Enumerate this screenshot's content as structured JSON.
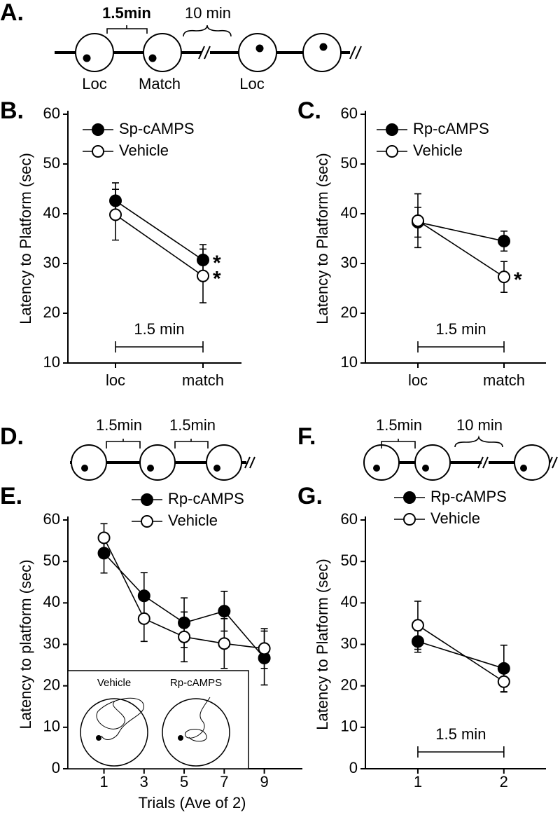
{
  "diagrams": [
    {
      "panel": "A.",
      "labels": [
        "1.5min",
        "10 min",
        "Loc",
        "Match",
        "Loc"
      ]
    },
    {
      "panel": "D.",
      "labels": [
        "1.5min",
        "1.5min"
      ]
    },
    {
      "panel": "F.",
      "labels": [
        "1.5min",
        "10 min"
      ]
    }
  ],
  "chart_data": [
    {
      "type": "line",
      "panel": "B.",
      "y_label": "Latency to Platform (sec)",
      "categories": [
        "loc",
        "match"
      ],
      "ylim": [
        10,
        60
      ],
      "yticks": [
        10,
        20,
        30,
        40,
        50,
        60
      ],
      "annotation": "1.5 min",
      "series": [
        {
          "name": "Sp-cAMPS",
          "color": "#000000",
          "fill": "#000000",
          "values": [
            42.6,
            30.7
          ],
          "errors": [
            3.6,
            3.1
          ],
          "significance": [
            null,
            "*"
          ]
        },
        {
          "name": "Vehicle",
          "color": "#000000",
          "fill": "#ffffff",
          "values": [
            39.8,
            27.5
          ],
          "errors": [
            5.1,
            5.4
          ],
          "significance": [
            null,
            "*"
          ]
        }
      ]
    },
    {
      "type": "line",
      "panel": "C.",
      "y_label": "Latency to Platform (sec)",
      "categories": [
        "loc",
        "match"
      ],
      "ylim": [
        10,
        60
      ],
      "yticks": [
        10,
        20,
        30,
        40,
        50,
        60
      ],
      "annotation": "1.5 min",
      "series": [
        {
          "name": "Rp-cAMPS",
          "color": "#000000",
          "fill": "#000000",
          "values": [
            38.3,
            34.5
          ],
          "errors": [
            3.0,
            2.0
          ]
        },
        {
          "name": "Vehicle",
          "color": "#000000",
          "fill": "#ffffff",
          "values": [
            38.6,
            27.3
          ],
          "errors": [
            5.4,
            3.1
          ],
          "significance": [
            null,
            "*"
          ]
        }
      ]
    },
    {
      "type": "line",
      "panel": "E.",
      "y_label": "Latency to platform (sec)",
      "x_label": "Trials (Ave of 2)",
      "x": [
        1,
        3,
        5,
        7,
        9
      ],
      "xlim": [
        -0.8,
        10.9
      ],
      "xticks": [
        1,
        3,
        5,
        7,
        9
      ],
      "ylim": [
        0,
        60
      ],
      "yticks": [
        0,
        10,
        20,
        30,
        40,
        50,
        60
      ],
      "inset_labels": [
        "Vehicle",
        "Rp-cAMPS"
      ],
      "series": [
        {
          "name": "Rp-cAMPS",
          "color": "#000000",
          "fill": "#000000",
          "values": [
            52,
            41.7,
            35.2,
            38,
            26.7
          ],
          "errors": [
            4.8,
            5.6,
            6,
            4.8,
            6.5
          ]
        },
        {
          "name": "Vehicle",
          "color": "#000000",
          "fill": "#ffffff",
          "values": [
            55.7,
            36.2,
            31.8,
            30.2,
            29
          ],
          "errors": [
            3.4,
            5.5,
            6,
            6,
            4.8
          ]
        }
      ]
    },
    {
      "type": "line",
      "panel": "G.",
      "y_label": "Latency to Platform (sec)",
      "x": [
        1,
        2
      ],
      "xlim": [
        0.39,
        2.49
      ],
      "xticks": [
        1,
        2
      ],
      "ylim": [
        0,
        60
      ],
      "yticks": [
        0,
        10,
        20,
        30,
        40,
        50,
        60
      ],
      "annotation": "1.5 min",
      "series": [
        {
          "name": "Rp-cAMPS",
          "color": "#000000",
          "fill": "#000000",
          "values": [
            30.7,
            24.2
          ],
          "errors": [
            2.6,
            5.6
          ]
        },
        {
          "name": "Vehicle",
          "color": "#000000",
          "fill": "#ffffff",
          "values": [
            34.6,
            21
          ],
          "errors": [
            5.8,
            2.5
          ]
        }
      ]
    }
  ]
}
